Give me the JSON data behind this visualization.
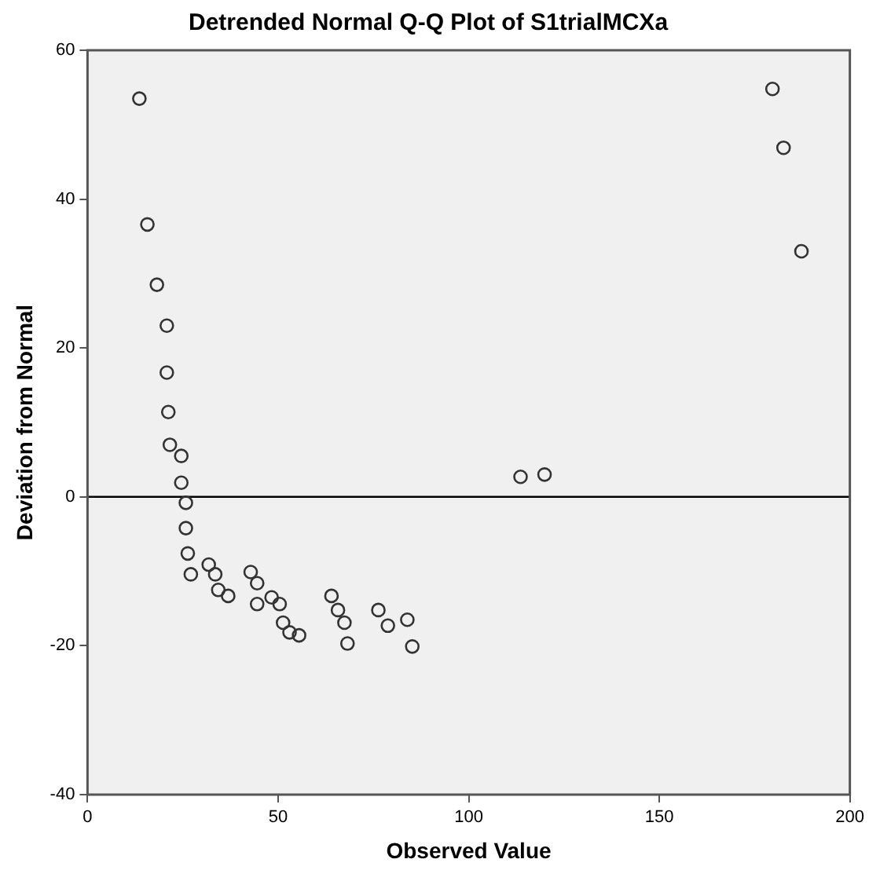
{
  "chart_data": {
    "type": "scatter",
    "title": "Detrended Normal Q-Q Plot of S1trialMCXa",
    "xlabel": "Observed Value",
    "ylabel": "Deviation from Normal",
    "x": [
      13.6,
      15.7,
      18.2,
      20.8,
      20.8,
      21.2,
      21.6,
      24.6,
      24.6,
      25.8,
      25.8,
      26.3,
      27.1,
      31.8,
      33.5,
      34.3,
      36.9,
      42.8,
      44.5,
      44.5,
      48.3,
      50.4,
      51.3,
      53.0,
      55.5,
      64.0,
      65.7,
      67.4,
      68.2,
      76.3,
      78.8,
      83.9,
      85.2,
      113.6,
      119.9,
      179.7,
      182.6,
      187.3
    ],
    "series": [
      {
        "color": "#333333",
        "values": [
          53.5,
          36.6,
          28.5,
          23.0,
          16.7,
          11.4,
          7.0,
          5.5,
          1.9,
          -0.8,
          -4.2,
          -7.6,
          -10.4,
          -9.1,
          -10.4,
          -12.5,
          -13.3,
          -10.1,
          -11.6,
          -14.4,
          -13.5,
          -14.4,
          -16.9,
          -18.2,
          -18.6,
          -13.3,
          -15.2,
          -16.9,
          -19.7,
          -15.2,
          -17.3,
          -16.5,
          -20.1,
          2.7,
          3.0,
          54.8,
          46.9,
          33.0
        ]
      }
    ],
    "xlim": [
      0,
      200
    ],
    "xticks": [
      0,
      50,
      100,
      150,
      200
    ],
    "ylim": [
      -40,
      60
    ],
    "yticks": [
      -40,
      -20,
      0,
      20,
      40,
      60
    ],
    "ref_lines": [
      {
        "axis": "y",
        "value": 0,
        "color": "#000000"
      }
    ],
    "marker": "circle"
  }
}
